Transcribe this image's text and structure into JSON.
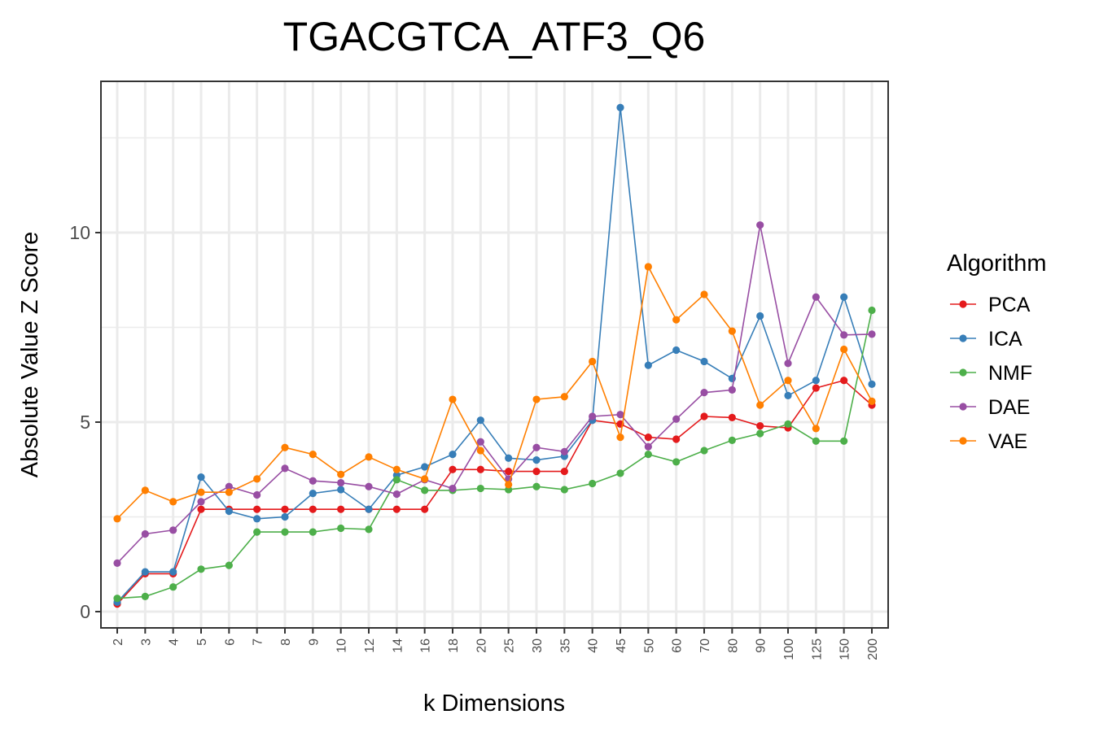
{
  "chart_data": {
    "type": "line",
    "title": "TGACGTCA_ATF3_Q6",
    "xlabel": "k Dimensions",
    "ylabel": "Absolute Value Z Score",
    "categories": [
      "2",
      "3",
      "4",
      "5",
      "6",
      "7",
      "8",
      "9",
      "10",
      "12",
      "14",
      "16",
      "18",
      "20",
      "25",
      "30",
      "35",
      "40",
      "45",
      "50",
      "60",
      "70",
      "80",
      "90",
      "100",
      "125",
      "150",
      "200"
    ],
    "yticks": [
      0,
      5,
      10
    ],
    "ylim": [
      -0.45,
      14
    ],
    "grid": true,
    "legend": {
      "title": "Algorithm",
      "position": "right"
    },
    "series": [
      {
        "name": "PCA",
        "color": "#e41a1c",
        "values": [
          0.2,
          1.0,
          1.0,
          2.7,
          2.7,
          2.7,
          2.7,
          2.7,
          2.7,
          2.7,
          2.7,
          2.7,
          3.75,
          3.75,
          3.7,
          3.7,
          3.7,
          5.05,
          4.95,
          4.6,
          4.55,
          5.15,
          5.12,
          4.9,
          4.85,
          5.9,
          6.1,
          5.45
        ]
      },
      {
        "name": "ICA",
        "color": "#377eb8",
        "values": [
          0.25,
          1.05,
          1.05,
          3.55,
          2.65,
          2.45,
          2.5,
          3.12,
          3.22,
          2.7,
          3.6,
          3.82,
          4.15,
          5.05,
          4.05,
          4.0,
          4.1,
          5.05,
          13.3,
          6.5,
          6.9,
          6.6,
          6.15,
          7.8,
          5.7,
          6.1,
          8.3,
          6.0
        ]
      },
      {
        "name": "NMF",
        "color": "#4daf4a",
        "values": [
          0.35,
          0.4,
          0.65,
          1.12,
          1.22,
          2.1,
          2.1,
          2.1,
          2.2,
          2.17,
          3.48,
          3.2,
          3.2,
          3.25,
          3.22,
          3.3,
          3.22,
          3.38,
          3.65,
          4.15,
          3.95,
          4.25,
          4.52,
          4.7,
          4.95,
          4.5,
          4.5,
          7.95
        ]
      },
      {
        "name": "DAE",
        "color": "#984ea3",
        "values": [
          1.28,
          2.05,
          2.15,
          2.9,
          3.3,
          3.08,
          3.78,
          3.45,
          3.4,
          3.3,
          3.1,
          3.48,
          3.25,
          4.48,
          3.5,
          4.33,
          4.22,
          5.15,
          5.2,
          4.35,
          5.08,
          5.78,
          5.85,
          10.2,
          6.55,
          8.3,
          7.3,
          7.32
        ]
      },
      {
        "name": "VAE",
        "color": "#ff7f00",
        "values": [
          2.45,
          3.2,
          2.9,
          3.15,
          3.15,
          3.5,
          4.33,
          4.15,
          3.62,
          4.08,
          3.75,
          3.5,
          5.6,
          4.25,
          3.35,
          5.6,
          5.67,
          6.6,
          4.6,
          9.1,
          7.7,
          8.37,
          7.4,
          5.45,
          6.1,
          4.83,
          6.92,
          5.55
        ]
      }
    ]
  }
}
